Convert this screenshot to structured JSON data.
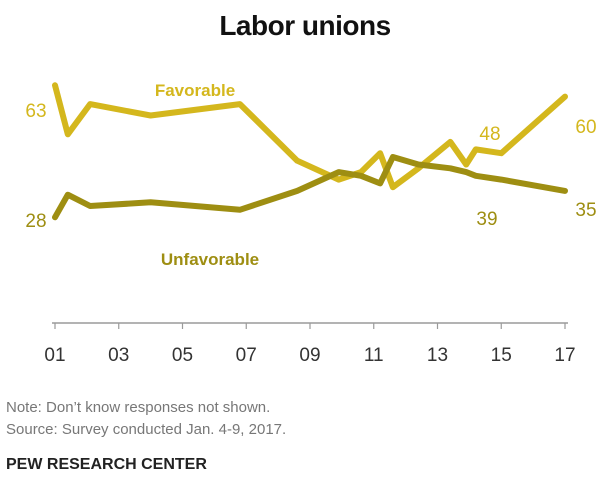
{
  "chart_data": {
    "type": "line",
    "title": "Labor unions",
    "xlabel": "",
    "ylabel": "",
    "x_tick_labels": [
      "01",
      "03",
      "05",
      "07",
      "09",
      "11",
      "13",
      "15",
      "17"
    ],
    "x_tick_years": [
      2001,
      2003,
      2005,
      2007,
      2009,
      2011,
      2013,
      2015,
      2017
    ],
    "xlim": [
      2001,
      2017
    ],
    "ylim": [
      0,
      75
    ],
    "grid": false,
    "legend": "inline labels",
    "series": [
      {
        "name": "Favorable",
        "color": "#d4b71d",
        "x": [
          2001.0,
          2001.4,
          2002.1,
          2004.0,
          2006.8,
          2008.6,
          2009.9,
          2010.6,
          2011.2,
          2011.6,
          2012.4,
          2013.4,
          2013.9,
          2014.2,
          2015.0,
          2017.0
        ],
        "y": [
          63,
          50,
          58,
          55,
          58,
          43,
          38,
          40,
          45,
          36,
          41,
          48,
          42,
          46,
          45,
          60
        ],
        "end_labels": [
          "63",
          "60"
        ],
        "mid_label": "48"
      },
      {
        "name": "Unfavorable",
        "color": "#9e8e12",
        "x": [
          2001.0,
          2001.4,
          2002.1,
          2004.0,
          2006.8,
          2008.6,
          2009.9,
          2010.6,
          2011.2,
          2011.6,
          2012.4,
          2013.4,
          2013.9,
          2014.2,
          2015.0,
          2017.0
        ],
        "y": [
          28,
          34,
          31,
          32,
          30,
          35,
          40,
          39,
          37,
          44,
          42,
          41,
          40,
          39,
          38,
          35
        ],
        "end_labels": [
          "28",
          "35"
        ],
        "mid_label": "39"
      }
    ]
  },
  "notes": {
    "line1": "Note: Don’t know responses not shown.",
    "line2": "Source: Survey conducted Jan. 4-9, 2017."
  },
  "brand": "PEW RESEARCH CENTER"
}
